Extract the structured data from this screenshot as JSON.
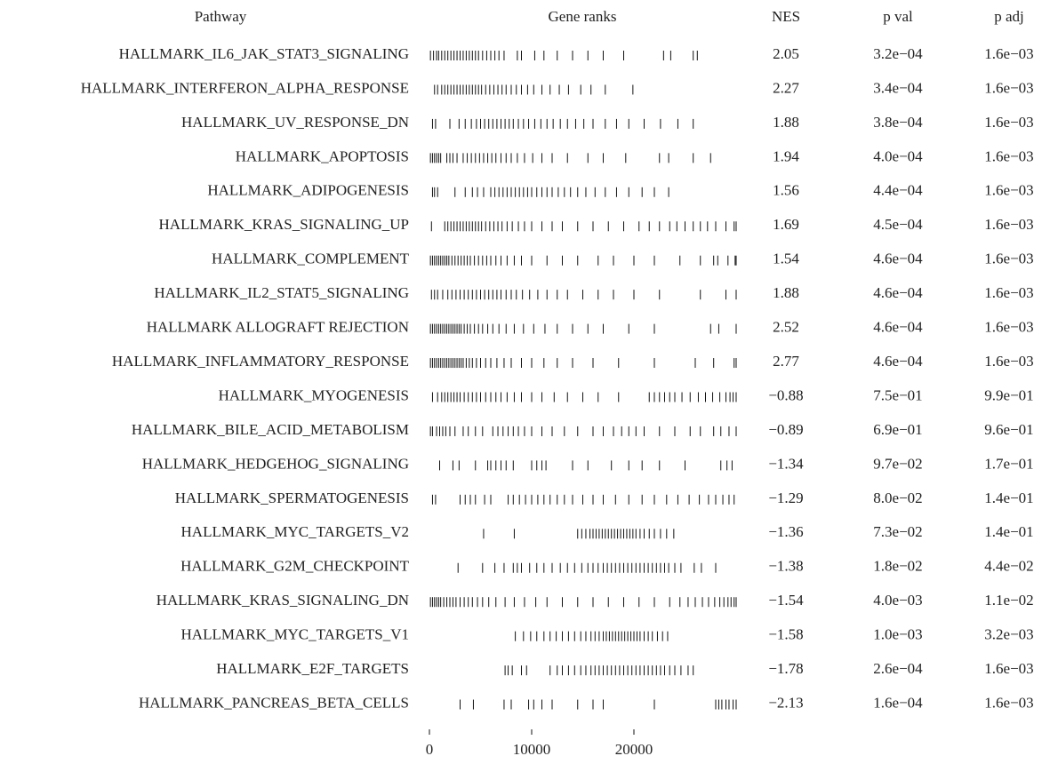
{
  "chart_data": {
    "type": "gsea-table",
    "headers": {
      "pathway": "Pathway",
      "ranks": "Gene ranks",
      "nes": "NES",
      "pval": "p val",
      "padj": "p adj"
    },
    "xlim": [
      0,
      30000
    ],
    "xticks": [
      0,
      10000,
      20000
    ],
    "rows": [
      {
        "pathway": "HALLMARK_IL6_JAK_STAT3_SIGNALING",
        "nes": "2.05",
        "pval": "3.2e−04",
        "padj": "1.6e−03",
        "ranks": [
          100,
          400,
          700,
          900,
          1200,
          1500,
          1800,
          2100,
          2400,
          2700,
          3000,
          3300,
          3600,
          3900,
          4200,
          4500,
          4800,
          5200,
          5600,
          6000,
          6400,
          6800,
          7300,
          8600,
          9000,
          10300,
          11200,
          12500,
          14000,
          15500,
          17000,
          19000,
          22900,
          23600,
          25800,
          26200
        ]
      },
      {
        "pathway": "HALLMARK_INTERFERON_ALPHA_RESPONSE",
        "nes": "2.27",
        "pval": "3.4e−04",
        "padj": "1.6e−03",
        "ranks": [
          500,
          800,
          1200,
          1500,
          1800,
          2100,
          2400,
          2700,
          3000,
          3300,
          3600,
          3900,
          4200,
          4500,
          4800,
          5100,
          5500,
          5900,
          6300,
          6700,
          7100,
          7500,
          8000,
          8500,
          9000,
          9600,
          10200,
          11000,
          11800,
          12700,
          13600,
          14800,
          15800,
          17200,
          19900
        ]
      },
      {
        "pathway": "HALLMARK_UV_RESPONSE_DN",
        "nes": "1.88",
        "pval": "3.8e−04",
        "padj": "1.6e−03",
        "ranks": [
          300,
          600,
          2000,
          2900,
          3500,
          4100,
          4600,
          5000,
          5400,
          5800,
          6200,
          6600,
          7000,
          7400,
          7800,
          8200,
          8700,
          9200,
          9700,
          10300,
          10900,
          11500,
          12100,
          12800,
          13500,
          14300,
          15100,
          16000,
          17200,
          18300,
          19500,
          21000,
          22600,
          24300,
          25800
        ]
      },
      {
        "pathway": "HALLMARK_APOPTOSIS",
        "nes": "1.94",
        "pval": "4.0e−04",
        "padj": "1.6e−03",
        "ranks": [
          100,
          300,
          500,
          700,
          900,
          1100,
          1700,
          2000,
          2300,
          2700,
          3300,
          3700,
          4100,
          4500,
          4900,
          5300,
          5700,
          6100,
          6500,
          7000,
          7500,
          8000,
          8600,
          9300,
          10100,
          11000,
          12000,
          13500,
          15500,
          17000,
          19200,
          22500,
          23400,
          25800,
          27500
        ]
      },
      {
        "pathway": "HALLMARK_ADIPOGENESIS",
        "nes": "1.56",
        "pval": "4.4e−04",
        "padj": "1.6e−03",
        "ranks": [
          300,
          500,
          800,
          2500,
          3500,
          4200,
          4700,
          5300,
          6000,
          6400,
          6800,
          7200,
          7600,
          8000,
          8400,
          8800,
          9200,
          9600,
          10000,
          10500,
          11000,
          11500,
          12000,
          12600,
          13200,
          13800,
          14500,
          15300,
          16200,
          17200,
          18300,
          19500,
          20800,
          22000,
          23400
        ]
      },
      {
        "pathway": "HALLMARK_KRAS_SIGNALING_UP",
        "nes": "1.69",
        "pval": "4.5e−04",
        "padj": "1.6e−03",
        "ranks": [
          200,
          1500,
          1800,
          2100,
          2400,
          2700,
          3000,
          3300,
          3600,
          3900,
          4200,
          4500,
          4800,
          5100,
          5500,
          5900,
          6300,
          6700,
          7100,
          7600,
          8100,
          8700,
          9300,
          10000,
          11000,
          12000,
          13000,
          14500,
          16000,
          17500,
          19000,
          20500,
          21500,
          22500,
          23500,
          24200,
          25000,
          25800,
          26500,
          27200,
          28000,
          29000,
          29800,
          30000
        ]
      },
      {
        "pathway": "HALLMARK_COMPLEMENT",
        "nes": "1.54",
        "pval": "4.6e−04",
        "padj": "1.6e−03",
        "ranks": [
          100,
          300,
          500,
          700,
          900,
          1100,
          1300,
          1500,
          1700,
          1900,
          2200,
          2500,
          2800,
          3100,
          3400,
          3700,
          4000,
          4400,
          4800,
          5200,
          5600,
          6000,
          6500,
          7000,
          7600,
          8300,
          9000,
          10000,
          11500,
          13000,
          14500,
          16500,
          18000,
          20000,
          22000,
          24500,
          26500,
          27800,
          28200,
          29200,
          29900,
          30000
        ]
      },
      {
        "pathway": "HALLMARK_IL2_STAT5_SIGNALING",
        "nes": "1.88",
        "pval": "4.6e−04",
        "padj": "1.6e−03",
        "ranks": [
          200,
          500,
          800,
          1300,
          1800,
          2200,
          2600,
          3000,
          3400,
          3800,
          4200,
          4600,
          5000,
          5400,
          5800,
          6200,
          6600,
          7000,
          7500,
          8000,
          8500,
          9100,
          9800,
          10600,
          11500,
          12500,
          13500,
          15000,
          16500,
          18000,
          20000,
          22500,
          26500,
          29000,
          30000
        ]
      },
      {
        "pathway": "HALLMARK ALLOGRAFT REJECTION",
        "nes": "2.52",
        "pval": "4.6e−04",
        "padj": "1.6e−03",
        "ranks": [
          100,
          300,
          500,
          700,
          900,
          1100,
          1300,
          1500,
          1700,
          1900,
          2100,
          2300,
          2500,
          2700,
          2900,
          3100,
          3400,
          3700,
          4000,
          4400,
          4800,
          5200,
          5700,
          6200,
          6800,
          7500,
          8300,
          9200,
          10200,
          11300,
          12500,
          14000,
          15500,
          17000,
          19500,
          22000,
          27500,
          28300,
          30000
        ]
      },
      {
        "pathway": "HALLMARK_INFLAMMATORY_RESPONSE",
        "nes": "2.77",
        "pval": "4.6e−04",
        "padj": "1.6e−03",
        "ranks": [
          100,
          300,
          500,
          700,
          900,
          1100,
          1300,
          1500,
          1700,
          1900,
          2100,
          2300,
          2500,
          2700,
          2900,
          3100,
          3300,
          3600,
          3900,
          4200,
          4600,
          5000,
          5500,
          6000,
          6600,
          7300,
          8000,
          9000,
          10000,
          11200,
          12500,
          14000,
          16000,
          18500,
          22000,
          26000,
          27800,
          29800,
          30000
        ]
      },
      {
        "pathway": "HALLMARK_MYOGENESIS",
        "nes": "−0.88",
        "pval": "7.5e−01",
        "padj": "9.9e−01",
        "ranks": [
          300,
          800,
          1200,
          1500,
          1800,
          2100,
          2400,
          2700,
          3000,
          3400,
          3800,
          4200,
          4600,
          5000,
          5500,
          6000,
          6500,
          7000,
          7600,
          8300,
          9000,
          10000,
          11000,
          12200,
          13500,
          15000,
          16500,
          18500,
          21500,
          22000,
          22500,
          23000,
          23500,
          24000,
          24700,
          25500,
          26300,
          27000,
          27700,
          28400,
          29000,
          29400,
          29700,
          30000
        ]
      },
      {
        "pathway": "HALLMARK_BILE_ACID_METABOLISM",
        "nes": "−0.89",
        "pval": "6.9e−01",
        "padj": "9.6e−01",
        "ranks": [
          100,
          300,
          700,
          1000,
          1300,
          1600,
          2000,
          2500,
          3300,
          3800,
          4500,
          5200,
          6200,
          6700,
          7200,
          7700,
          8200,
          8700,
          9300,
          10000,
          11000,
          12000,
          13200,
          14500,
          16000,
          17000,
          18000,
          18800,
          19500,
          20200,
          21000,
          22500,
          24000,
          25500,
          26500,
          27800,
          28500,
          29300,
          30000
        ]
      },
      {
        "pathway": "HALLMARK_HEDGEHOG_SIGNALING",
        "nes": "−1.34",
        "pval": "9.7e−02",
        "padj": "1.7e−01",
        "ranks": [
          1000,
          2300,
          2900,
          4500,
          5700,
          6000,
          6500,
          7000,
          7500,
          8200,
          10000,
          10500,
          11000,
          11400,
          14000,
          15500,
          17800,
          19500,
          20800,
          22500,
          25000,
          28500,
          29100,
          29600
        ]
      },
      {
        "pathway": "HALLMARK_SPERMATOGENESIS",
        "nes": "−1.29",
        "pval": "8.0e−02",
        "padj": "1.4e−01",
        "ranks": [
          300,
          600,
          3000,
          3500,
          4000,
          4500,
          5400,
          6000,
          7700,
          8200,
          8800,
          9400,
          10000,
          10600,
          11200,
          11800,
          12500,
          13200,
          14000,
          15000,
          16000,
          17000,
          18200,
          19500,
          20800,
          22000,
          23200,
          24300,
          25400,
          26400,
          27300,
          28000,
          28700,
          29300,
          29800
        ]
      },
      {
        "pathway": "HALLMARK_MYC_TARGETS_V2",
        "nes": "−1.36",
        "pval": "7.3e−02",
        "padj": "1.4e−01",
        "ranks": [
          5300,
          8300,
          14500,
          14900,
          15300,
          15700,
          16000,
          16300,
          16600,
          16900,
          17200,
          17500,
          17800,
          18100,
          18400,
          18700,
          19000,
          19300,
          19600,
          19900,
          20200,
          20600,
          21000,
          21500,
          22000,
          22600,
          23200,
          23900
        ]
      },
      {
        "pathway": "HALLMARK_G2M_CHECKPOINT",
        "nes": "−1.38",
        "pval": "1.8e−02",
        "padj": "4.4e−02",
        "ranks": [
          2800,
          5200,
          6400,
          7300,
          8200,
          8600,
          9000,
          9800,
          10500,
          11200,
          12000,
          12800,
          13500,
          14200,
          14900,
          15500,
          16000,
          16500,
          17000,
          17400,
          17800,
          18200,
          18600,
          19000,
          19400,
          19800,
          20200,
          20600,
          21000,
          21400,
          21800,
          22200,
          22600,
          23000,
          23400,
          24000,
          24600,
          25900,
          26600,
          28000
        ]
      },
      {
        "pathway": "HALLMARK_KRAS_SIGNALING_DN",
        "nes": "−1.54",
        "pval": "4.0e−03",
        "padj": "1.1e−02",
        "ranks": [
          100,
          300,
          500,
          700,
          900,
          1100,
          1400,
          1700,
          2000,
          2300,
          2600,
          3000,
          3400,
          3800,
          4200,
          4700,
          5200,
          5800,
          6500,
          7400,
          8300,
          9300,
          10400,
          11500,
          13000,
          14500,
          16000,
          17500,
          19000,
          20500,
          22000,
          23500,
          24500,
          25300,
          26000,
          26700,
          27300,
          27900,
          28400,
          28800,
          29200,
          29500,
          29800,
          30000
        ]
      },
      {
        "pathway": "HALLMARK_MYC_TARGETS_V1",
        "nes": "−1.58",
        "pval": "1.0e−03",
        "padj": "3.2e−03",
        "ranks": [
          8400,
          9200,
          9900,
          10500,
          11200,
          11800,
          12400,
          13000,
          13600,
          14200,
          14800,
          15300,
          15800,
          16200,
          16600,
          17000,
          17300,
          17600,
          17900,
          18200,
          18500,
          18800,
          19100,
          19400,
          19700,
          20000,
          20300,
          20600,
          21000,
          21400,
          21800,
          22300,
          22800,
          23300
        ]
      },
      {
        "pathway": "HALLMARK_E2F_TARGETS",
        "nes": "−1.78",
        "pval": "2.6e−04",
        "padj": "1.6e−03",
        "ranks": [
          7400,
          7700,
          8100,
          9000,
          9500,
          11800,
          12500,
          13000,
          13600,
          14200,
          14800,
          15300,
          15800,
          16200,
          16600,
          17000,
          17400,
          17800,
          18200,
          18600,
          19000,
          19400,
          19800,
          20200,
          20600,
          21000,
          21400,
          21800,
          22200,
          22600,
          23000,
          23500,
          24000,
          24600,
          25300,
          25800
        ]
      },
      {
        "pathway": "HALLMARK_PANCREAS_BETA_CELLS",
        "nes": "−2.13",
        "pval": "1.6e−04",
        "padj": "1.6e−03",
        "ranks": [
          3000,
          4300,
          7300,
          8000,
          9700,
          10200,
          11000,
          12000,
          14500,
          16000,
          17000,
          22000,
          28000,
          28300,
          28600,
          29000,
          29300,
          29700,
          30000
        ]
      }
    ]
  }
}
